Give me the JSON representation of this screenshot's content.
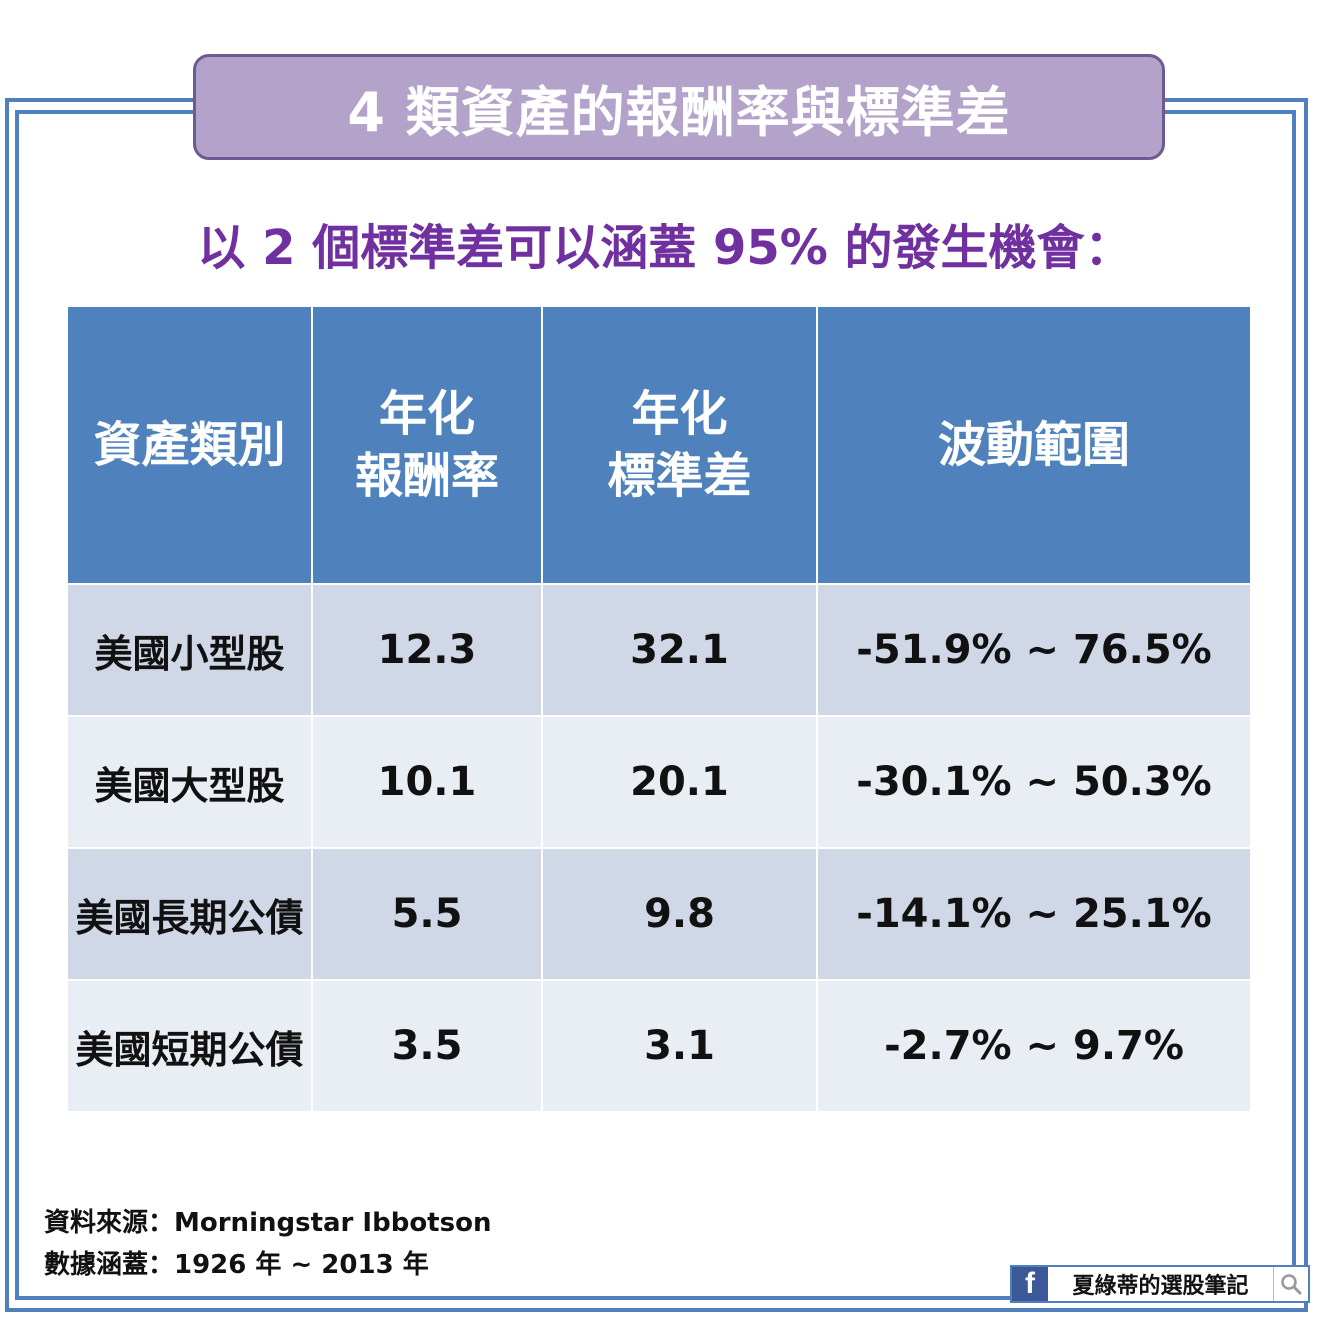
{
  "title": "4 類資產的報酬率與標準差",
  "subtitle": "以 2 個標準差可以涵蓋 95% 的發生機會：",
  "table": {
    "headers": [
      {
        "line1": "資產類別",
        "line2": ""
      },
      {
        "line1": "年化",
        "line2": "報酬率"
      },
      {
        "line1": "年化",
        "line2": "標準差"
      },
      {
        "line1": "波動範圍",
        "line2": ""
      }
    ],
    "rows": [
      {
        "asset": "美國小型股",
        "return": "12.3",
        "stdev": "32.1",
        "range": "-51.9% ~ 76.5%"
      },
      {
        "asset": "美國大型股",
        "return": "10.1",
        "stdev": "20.1",
        "range": "-30.1% ~ 50.3%"
      },
      {
        "asset": "美國長期公債",
        "return": "5.5",
        "stdev": "9.8",
        "range": "-14.1% ~ 25.1%"
      },
      {
        "asset": "美國短期公債",
        "return": "3.5",
        "stdev": "3.1",
        "range": "-2.7% ~ 9.7%"
      }
    ]
  },
  "footer": {
    "source": "資料來源：Morningstar Ibbotson",
    "coverage": "數據涵蓋：1926 年 ~ 2013 年"
  },
  "badge": {
    "logo": "f",
    "name": "夏綠蒂的選股筆記",
    "icon": "search-icon"
  },
  "colors": {
    "frame": "#4f80bd",
    "title_bg": "#b3a2c9",
    "subtitle": "#7030a0",
    "header_bg": "#4f81bd",
    "row_odd": "#d0d8e8",
    "row_even": "#e9edf4"
  }
}
